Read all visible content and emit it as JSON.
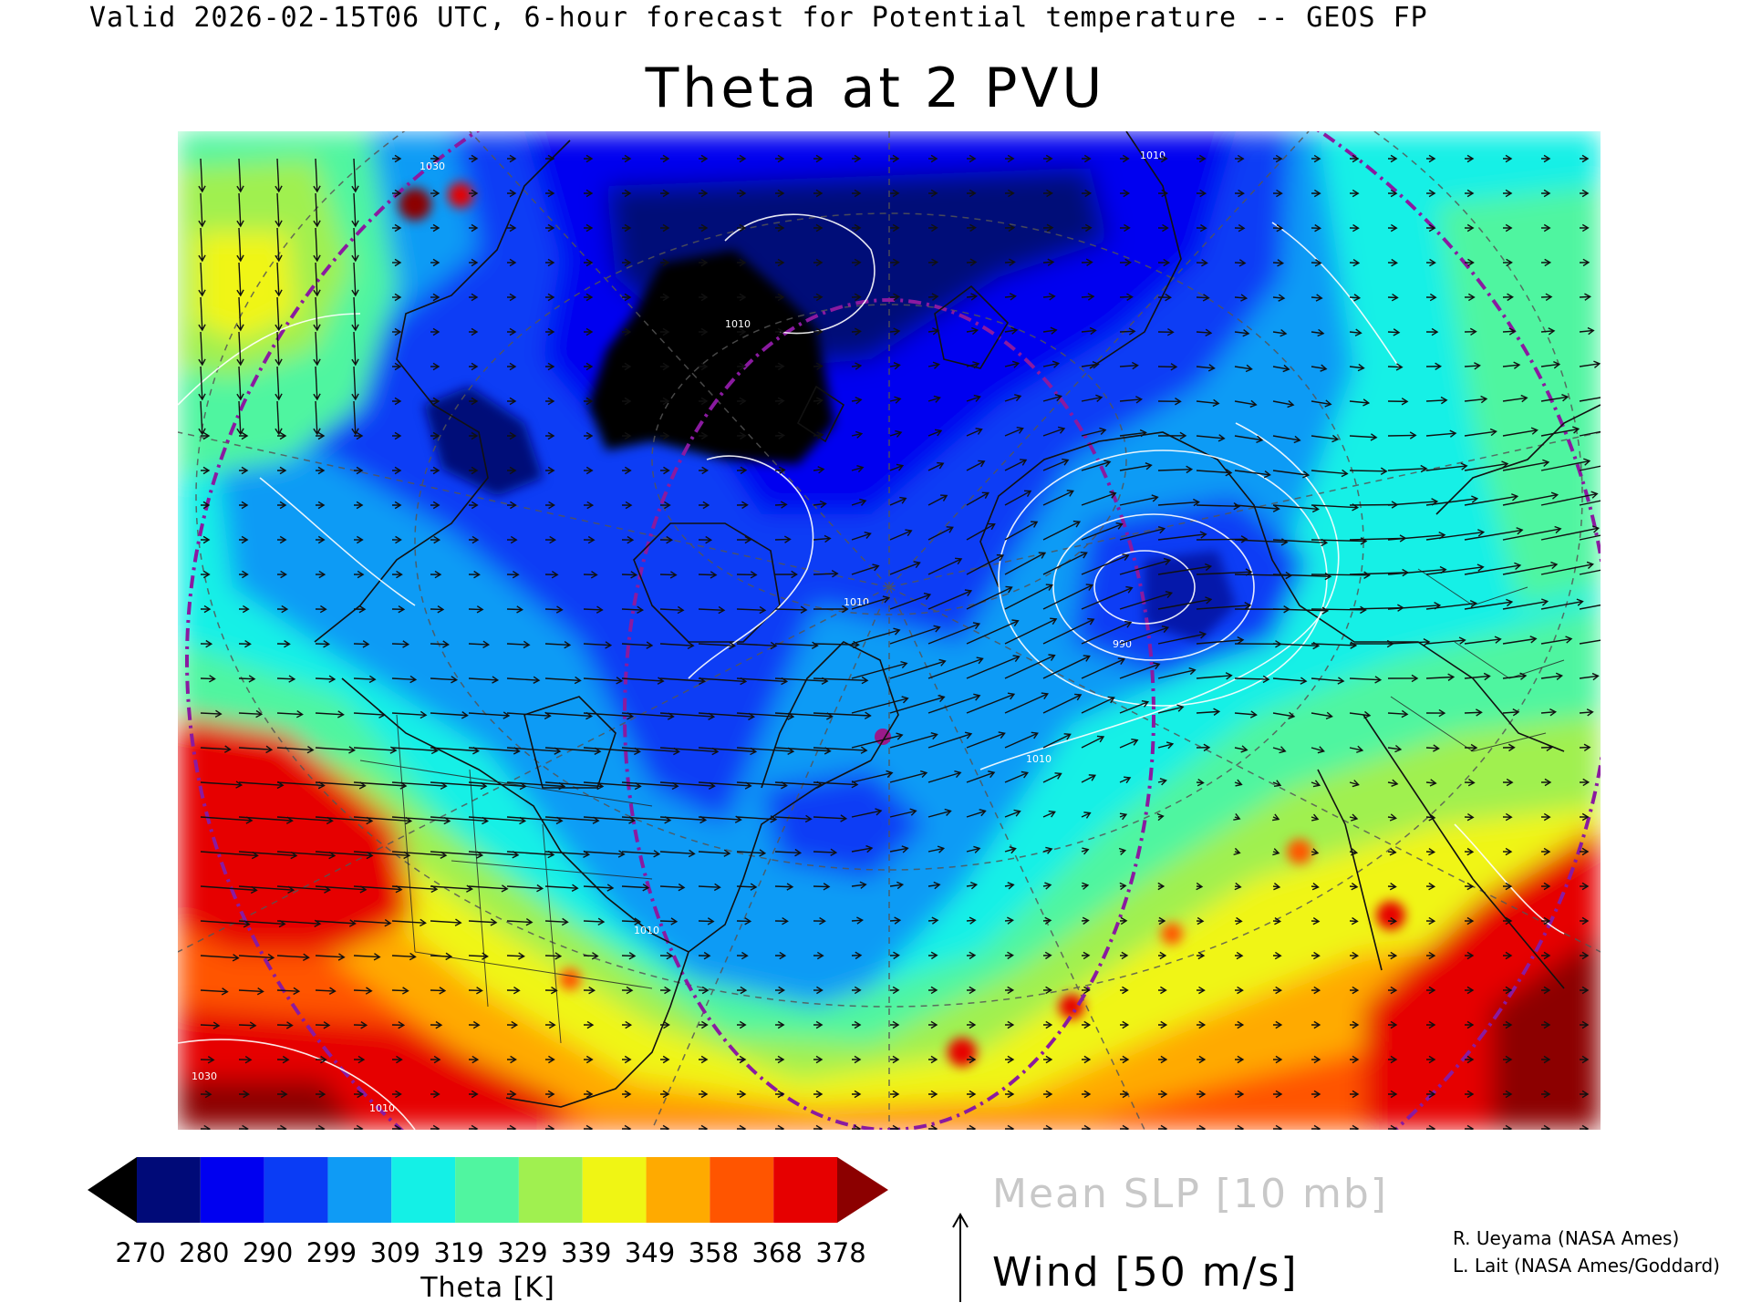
{
  "header": {
    "valid_line": "Valid 2026-02-15T06 UTC, 6-hour forecast for Potential temperature -- GEOS FP"
  },
  "title": "Theta at 2 PVU",
  "colorbar": {
    "label": "Theta [K]",
    "ticks": [
      "270",
      "280",
      "290",
      "299",
      "309",
      "319",
      "329",
      "339",
      "349",
      "358",
      "368",
      "378"
    ],
    "colors": [
      "#000000",
      "#000a78",
      "#0000f0",
      "#0a3cf5",
      "#0f9bf5",
      "#14f0e6",
      "#50f5a0",
      "#a0f050",
      "#f0f514",
      "#ffaa00",
      "#ff5500",
      "#e60000",
      "#8c0000"
    ]
  },
  "legend": {
    "slp_label": "Mean SLP [10 mb]",
    "wind_label": "Wind [50 m/s]"
  },
  "credits": [
    "R. Ueyama (NASA Ames)",
    "L. Lait (NASA Ames/Goddard)"
  ],
  "map": {
    "contour_labels": [
      "1030",
      "1010",
      "1010",
      "1010",
      "990",
      "1010",
      "1010",
      "1010",
      "1030"
    ]
  }
}
